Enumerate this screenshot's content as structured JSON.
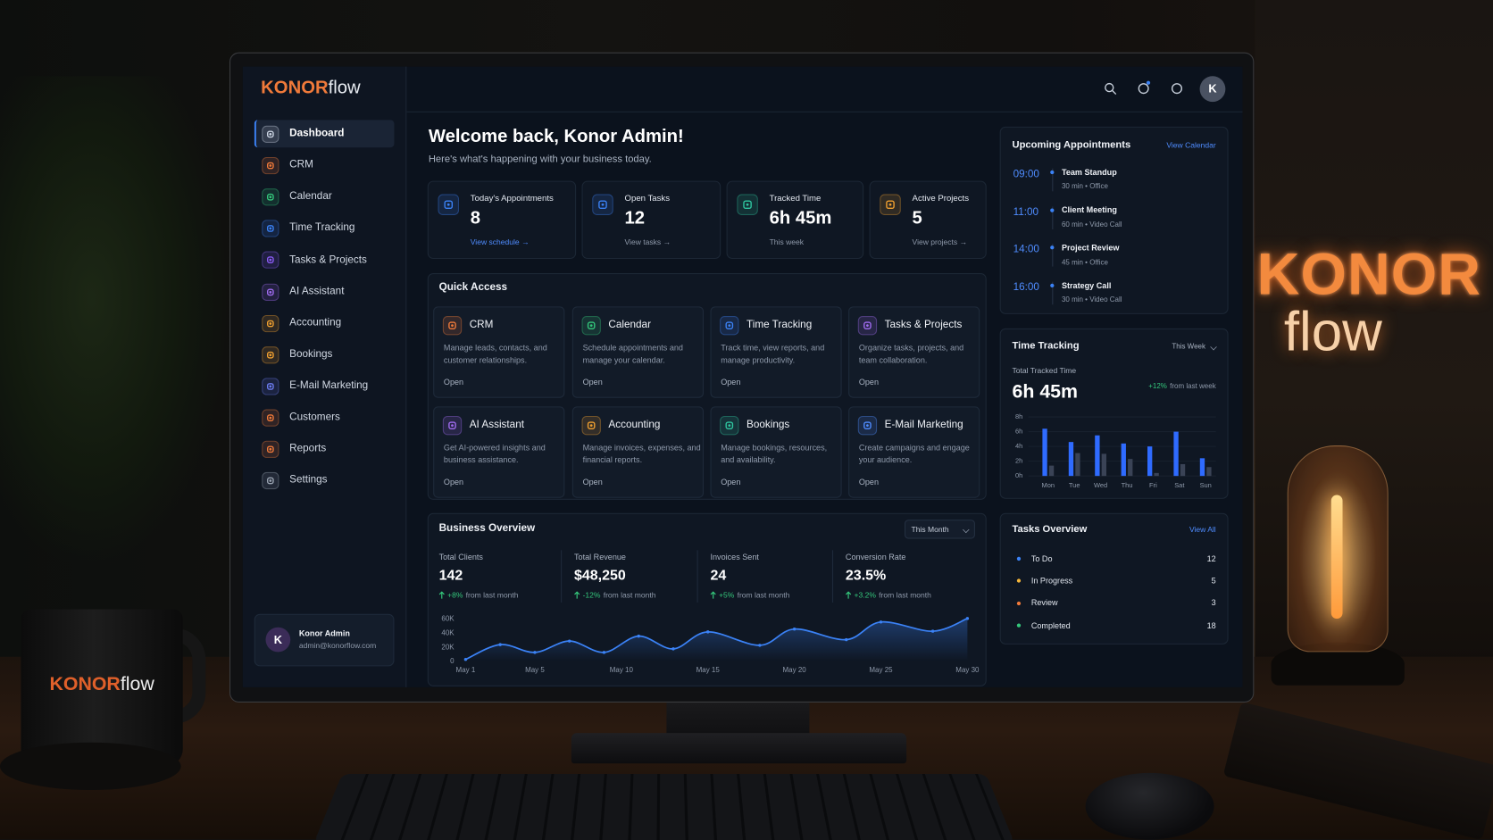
{
  "backdrop": {
    "sign_top": "KONOR",
    "sign_bottom": "flow",
    "mug_bold": "KONOR",
    "mug_light": "flow"
  },
  "brand": {
    "bold": "KONOR",
    "light": "flow"
  },
  "sidebar": {
    "nav": [
      "Dashboard",
      "CRM",
      "Calendar",
      "Time Tracking",
      "Tasks & Projects",
      "AI Assistant",
      "Accounting",
      "Bookings",
      "E-Mail Marketing",
      "Customers",
      "Reports",
      "Settings"
    ],
    "user": {
      "initial": "K",
      "name": "Konor Admin",
      "email": "admin@konorflow.com"
    }
  },
  "header": {
    "avatar": "K"
  },
  "welcome": {
    "title": "Welcome back, Konor Admin!",
    "subtitle": "Here's what's happening with your business today."
  },
  "stats": [
    {
      "label": "Today's Appointments",
      "value": 8,
      "footer": "View schedule →"
    },
    {
      "label": "Open Tasks",
      "value": 12,
      "footer": "View tasks →"
    },
    {
      "label": "Tracked Time",
      "value": "6h 45m",
      "footer": "This week"
    },
    {
      "label": "Active Projects",
      "value": 5,
      "footer": "View projects →"
    }
  ],
  "quick_access": {
    "title": "Quick Access",
    "items": [
      {
        "name": "CRM",
        "description": "Manage leads, contacts, and customer relationships.",
        "action": "Open"
      },
      {
        "name": "Calendar",
        "description": "Schedule appointments and manage your calendar.",
        "action": "Open"
      },
      {
        "name": "Time Tracking",
        "description": "Track time, view reports, and manage productivity.",
        "action": "Open"
      },
      {
        "name": "Tasks & Projects",
        "description": "Organize tasks, projects, and team collaboration.",
        "action": "Open"
      },
      {
        "name": "AI Assistant",
        "description": "Get AI-powered insights and business assistance.",
        "action": "Open"
      },
      {
        "name": "Accounting",
        "description": "Manage invoices, expenses, and financial reports.",
        "action": "Open"
      },
      {
        "name": "Bookings",
        "description": "Manage bookings, resources, and availability.",
        "action": "Open"
      },
      {
        "name": "E-Mail Marketing",
        "description": "Create campaigns and engage your audience.",
        "action": "Open"
      }
    ]
  },
  "business_overview": {
    "title": "Business Overview",
    "period": "This Month",
    "metrics": [
      {
        "label": "Total Clients",
        "value": "142",
        "change": "+8%",
        "note": "from last month"
      },
      {
        "label": "Total Revenue",
        "value": "$48,250",
        "change": "-12%",
        "note": "from last month"
      },
      {
        "label": "Invoices Sent",
        "value": "24",
        "change": "+5%",
        "note": "from last month"
      },
      {
        "label": "Conversion Rate",
        "value": "23.5%",
        "change": "+3.2%",
        "note": "from last month"
      }
    ]
  },
  "appointments": {
    "title": "Upcoming Appointments",
    "link": "View Calendar",
    "items": [
      {
        "time": "09:00",
        "title": "Team Standup",
        "detail": "30 min • Office"
      },
      {
        "time": "11:00",
        "title": "Client Meeting",
        "detail": "60 min • Video Call"
      },
      {
        "time": "14:00",
        "title": "Project Review",
        "detail": "45 min • Office"
      },
      {
        "time": "16:00",
        "title": "Strategy Call",
        "detail": "30 min • Video Call"
      }
    ]
  },
  "time_tracking": {
    "title": "Time Tracking",
    "period": "This Week",
    "total_label": "Total Tracked Time",
    "total": "6h 45m",
    "change": "+12%",
    "note": "from last week"
  },
  "tasks": {
    "title": "Tasks Overview",
    "link": "View All",
    "items": [
      {
        "label": "To Do",
        "count": 12,
        "color": "#3b82f6"
      },
      {
        "label": "In Progress",
        "count": 5,
        "color": "#f5b63a"
      },
      {
        "label": "Review",
        "count": 3,
        "color": "#f07a3a"
      },
      {
        "label": "Completed",
        "count": 18,
        "color": "#34c77b"
      }
    ]
  },
  "chart_data": [
    {
      "type": "line",
      "x": [
        1,
        3,
        5,
        7,
        9,
        11,
        13,
        15,
        18,
        20,
        23,
        25,
        28,
        30
      ],
      "values": [
        3000,
        24000,
        13000,
        29000,
        13000,
        36000,
        18000,
        42000,
        23000,
        46000,
        31000,
        56000,
        43000,
        61000
      ],
      "color": "#3b82f6",
      "xlim": [
        1,
        30
      ],
      "xticks": [
        {
          "value": 1,
          "label": "May 1"
        },
        {
          "value": 5,
          "label": "May 5"
        },
        {
          "value": 10,
          "label": "May 10"
        },
        {
          "value": 15,
          "label": "May 15"
        },
        {
          "value": 20,
          "label": "May 20"
        },
        {
          "value": 25,
          "label": "May 25"
        },
        {
          "value": 30,
          "label": "May 30"
        }
      ],
      "ylim": [
        0,
        62000
      ],
      "yticks": [
        {
          "value": 0,
          "label": "0"
        },
        {
          "value": 20000,
          "label": "20K"
        },
        {
          "value": 40000,
          "label": "40K"
        },
        {
          "value": 60000,
          "label": "60K"
        }
      ],
      "grid": false
    },
    {
      "type": "bar",
      "categories": [
        "Mon",
        "Tue",
        "Wed",
        "Thu",
        "Fri",
        "Sat",
        "Sun"
      ],
      "series": [
        {
          "color": "#2f6bff",
          "values": [
            6.4,
            4.6,
            5.5,
            4.4,
            4.0,
            6.0,
            2.4
          ]
        },
        {
          "color": "#3a4356",
          "values": [
            1.4,
            3.1,
            3.0,
            2.3,
            0.4,
            1.6,
            1.2
          ]
        }
      ],
      "ylim": [
        0,
        8
      ],
      "yticks": [
        {
          "value": 0,
          "label": "0h"
        },
        {
          "value": 2,
          "label": "2h"
        },
        {
          "value": 4,
          "label": "4h"
        },
        {
          "value": 6,
          "label": "6h"
        },
        {
          "value": 8,
          "label": "8h"
        }
      ],
      "grid": true
    }
  ]
}
